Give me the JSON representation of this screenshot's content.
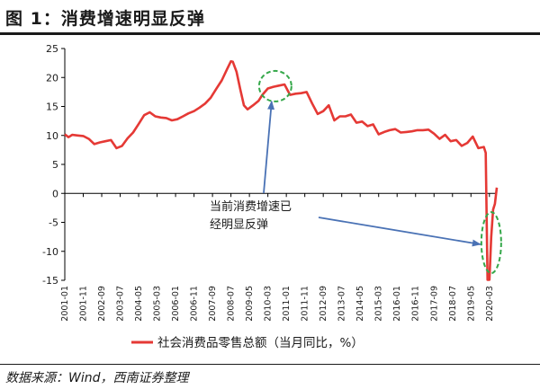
{
  "header": {
    "title": "图 1：消费增速明显反弹"
  },
  "footer": {
    "source": "数据来源：Wind，西南证券整理"
  },
  "colors": {
    "series": "#e53935",
    "circle": "#35a84a",
    "arrow": "#4a72b5",
    "axis": "#000000"
  },
  "annotation": {
    "lines": [
      "当前消费增速已",
      "经明显反弹"
    ]
  },
  "chart_data": {
    "type": "line",
    "title": "",
    "xlabel": "",
    "ylabel": "",
    "ylim": [
      -15,
      25
    ],
    "yticks": [
      25,
      20,
      15,
      10,
      5,
      0,
      -5,
      -10,
      -15
    ],
    "x_tick_labels": [
      "2001-01",
      "2001-11",
      "2002-09",
      "2003-07",
      "2004-05",
      "2005-03",
      "2006-01",
      "2006-11",
      "2007-09",
      "2008-07",
      "2009-05",
      "2010-03",
      "2011-01",
      "2011-11",
      "2012-09",
      "2013-07",
      "2014-05",
      "2015-03",
      "2016-01",
      "2016-11",
      "2017-09",
      "2018-07",
      "2019-05",
      "2020-03"
    ],
    "x_start": "2001-01",
    "x_end": "2020-07",
    "legend": {
      "label": "社会消费品零售总额（当月同比，%）",
      "position": "bottom"
    },
    "series": [
      {
        "name": "社会消费品零售总额（当月同比，%）",
        "points": [
          [
            "2001-01",
            10.2
          ],
          [
            "2001-03",
            9.7
          ],
          [
            "2001-05",
            10.1
          ],
          [
            "2001-08",
            10.0
          ],
          [
            "2001-11",
            9.9
          ],
          [
            "2002-02",
            9.4
          ],
          [
            "2002-05",
            8.5
          ],
          [
            "2002-08",
            8.8
          ],
          [
            "2002-11",
            9.0
          ],
          [
            "2003-02",
            9.2
          ],
          [
            "2003-05",
            7.8
          ],
          [
            "2003-08",
            8.2
          ],
          [
            "2003-11",
            9.5
          ],
          [
            "2004-02",
            10.5
          ],
          [
            "2004-05",
            12.0
          ],
          [
            "2004-08",
            13.5
          ],
          [
            "2004-11",
            14.0
          ],
          [
            "2005-02",
            13.3
          ],
          [
            "2005-05",
            13.1
          ],
          [
            "2005-08",
            13.0
          ],
          [
            "2005-11",
            12.6
          ],
          [
            "2006-02",
            12.8
          ],
          [
            "2006-05",
            13.3
          ],
          [
            "2006-08",
            13.8
          ],
          [
            "2006-11",
            14.2
          ],
          [
            "2007-02",
            14.8
          ],
          [
            "2007-05",
            15.5
          ],
          [
            "2007-08",
            16.5
          ],
          [
            "2007-11",
            18.0
          ],
          [
            "2008-02",
            19.5
          ],
          [
            "2008-05",
            21.5
          ],
          [
            "2008-07",
            22.8
          ],
          [
            "2008-08",
            22.7
          ],
          [
            "2008-10",
            21.0
          ],
          [
            "2008-12",
            18.0
          ],
          [
            "2009-02",
            15.2
          ],
          [
            "2009-04",
            14.5
          ],
          [
            "2009-07",
            15.2
          ],
          [
            "2009-10",
            16.0
          ],
          [
            "2009-12",
            17.0
          ],
          [
            "2010-03",
            18.1
          ],
          [
            "2010-06",
            18.4
          ],
          [
            "2010-09",
            18.6
          ],
          [
            "2010-12",
            18.8
          ],
          [
            "2011-03",
            17.0
          ],
          [
            "2011-06",
            17.2
          ],
          [
            "2011-09",
            17.3
          ],
          [
            "2011-12",
            17.5
          ],
          [
            "2012-03",
            15.5
          ],
          [
            "2012-06",
            13.7
          ],
          [
            "2012-09",
            14.2
          ],
          [
            "2012-12",
            15.2
          ],
          [
            "2013-03",
            12.6
          ],
          [
            "2013-06",
            13.3
          ],
          [
            "2013-09",
            13.3
          ],
          [
            "2013-12",
            13.6
          ],
          [
            "2014-03",
            12.2
          ],
          [
            "2014-06",
            12.4
          ],
          [
            "2014-09",
            11.6
          ],
          [
            "2014-12",
            11.9
          ],
          [
            "2015-03",
            10.2
          ],
          [
            "2015-06",
            10.6
          ],
          [
            "2015-09",
            10.9
          ],
          [
            "2015-12",
            11.1
          ],
          [
            "2016-03",
            10.5
          ],
          [
            "2016-06",
            10.6
          ],
          [
            "2016-09",
            10.7
          ],
          [
            "2016-12",
            10.9
          ],
          [
            "2017-03",
            10.9
          ],
          [
            "2017-06",
            11.0
          ],
          [
            "2017-09",
            10.3
          ],
          [
            "2017-12",
            9.4
          ],
          [
            "2018-03",
            10.1
          ],
          [
            "2018-06",
            9.0
          ],
          [
            "2018-09",
            9.2
          ],
          [
            "2018-12",
            8.2
          ],
          [
            "2019-03",
            8.7
          ],
          [
            "2019-06",
            9.8
          ],
          [
            "2019-09",
            7.8
          ],
          [
            "2019-12",
            8.0
          ],
          [
            "2020-01",
            7.0
          ],
          [
            "2020-02",
            -20.5
          ],
          [
            "2020-03",
            -15.8
          ],
          [
            "2020-04",
            -7.5
          ],
          [
            "2020-05",
            -2.8
          ],
          [
            "2020-06",
            -1.8
          ],
          [
            "2020-07",
            1.0
          ]
        ]
      }
    ]
  }
}
